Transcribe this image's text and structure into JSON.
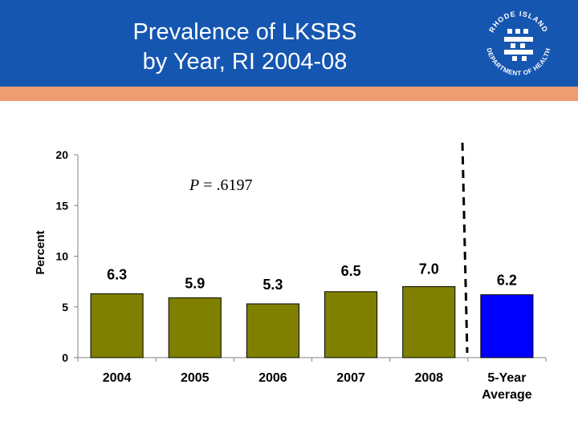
{
  "header": {
    "title_line1": "Prevalence of LKSBS",
    "title_line2": "by Year, RI 2004-08",
    "logo_text_top": "RHODE ISLAND",
    "logo_text_bottom": "DEPARTMENT OF HEALTH"
  },
  "colors": {
    "header_bg": "#1556b0",
    "stripe": "#ee9c72",
    "bar_year": "#808000",
    "bar_average": "#0000ff"
  },
  "chart_data": {
    "type": "bar",
    "title": "Prevalence of LKSBS by Year, RI 2004-08",
    "xlabel": "",
    "ylabel": "Percent",
    "ylim": [
      0,
      20
    ],
    "yticks": [
      0,
      5,
      10,
      15,
      20
    ],
    "grid": false,
    "categories": [
      [
        "2004"
      ],
      [
        "2005"
      ],
      [
        "2006"
      ],
      [
        "2007"
      ],
      [
        "2008"
      ],
      [
        "5-Year",
        "Average"
      ]
    ],
    "values": [
      6.3,
      5.9,
      5.3,
      6.5,
      7.0,
      6.2
    ],
    "value_labels": [
      "6.3",
      "5.9",
      "5.3",
      "6.5",
      "7.0",
      "6.2"
    ],
    "annotation": {
      "p_label": "P",
      "p_value": " = .6197"
    }
  }
}
